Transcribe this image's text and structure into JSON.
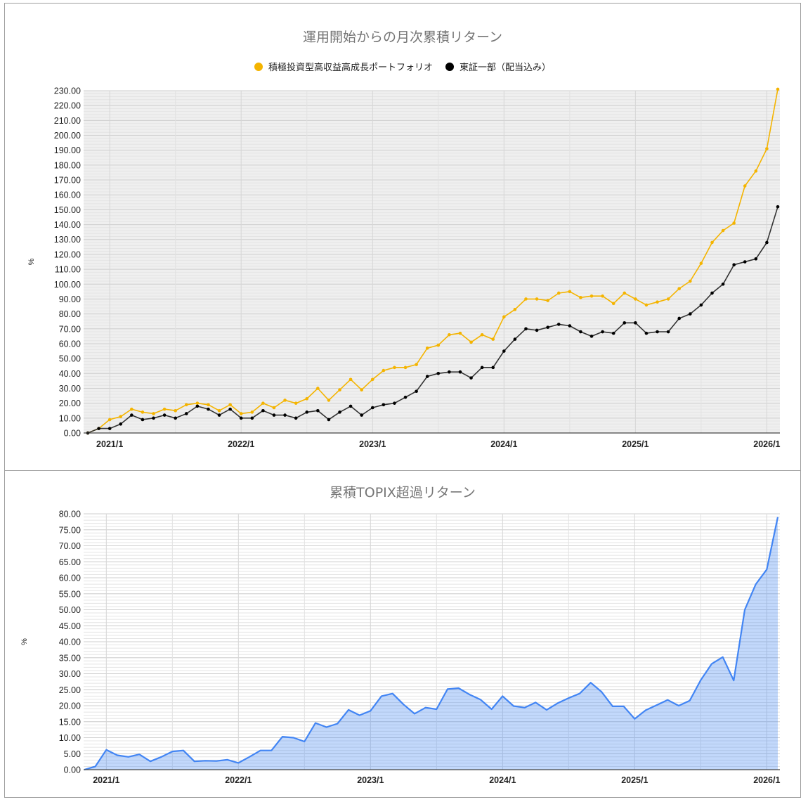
{
  "chart_data": [
    {
      "type": "line",
      "title": "運用開始からの月次累積リターン",
      "xlabel": "",
      "ylabel": "%",
      "ylim": [
        0,
        230
      ],
      "y_ticks": [
        "0.00",
        "10.00",
        "20.00",
        "30.00",
        "40.00",
        "50.00",
        "60.00",
        "70.00",
        "80.00",
        "90.00",
        "100.00",
        "110.00",
        "120.00",
        "130.00",
        "140.00",
        "150.00",
        "160.00",
        "170.00",
        "180.00",
        "190.00",
        "200.00",
        "210.00",
        "220.00",
        "230.00"
      ],
      "x_tick_labels": [
        "2021/1",
        "2022/1",
        "2023/1",
        "2024/1",
        "2025/1",
        "2026/1"
      ],
      "x_start": "2020/11",
      "x_end": "2026/2",
      "legend_position": "top",
      "grid": true,
      "series": [
        {
          "name": "積極投資型高収益高成長ポートフォリオ",
          "color": "#f4b400",
          "values": [
            0,
            3,
            9,
            11,
            16,
            14,
            13,
            16,
            15,
            19,
            20,
            19,
            15,
            19,
            13,
            14,
            20,
            17,
            22,
            20,
            23,
            30,
            22,
            29,
            36,
            29,
            36,
            42,
            44,
            44,
            46,
            57,
            59,
            66,
            67,
            61,
            66,
            63,
            78,
            83,
            90,
            90,
            89,
            94,
            95,
            91,
            92,
            92,
            87,
            94,
            90,
            86,
            88,
            90,
            97,
            102,
            114,
            128,
            136,
            141,
            166,
            176,
            191,
            231
          ]
        },
        {
          "name": "東証一部（配当込み）",
          "color": "#000000",
          "values": [
            0,
            3,
            3,
            6,
            12,
            9,
            10,
            12,
            10,
            13,
            18,
            16,
            12,
            16,
            10,
            10,
            15,
            12,
            12,
            10,
            14,
            15,
            9,
            14,
            18,
            12,
            17,
            19,
            20,
            24,
            28,
            38,
            40,
            41,
            41,
            37,
            44,
            44,
            55,
            63,
            70,
            69,
            71,
            73,
            72,
            68,
            65,
            68,
            67,
            74,
            74,
            67,
            68,
            68,
            77,
            80,
            86,
            94,
            100,
            113,
            115,
            117,
            128,
            152
          ]
        }
      ]
    },
    {
      "type": "area",
      "title": "累積TOPIX超過リターン",
      "xlabel": "",
      "ylabel": "%",
      "ylim": [
        0,
        80
      ],
      "y_ticks": [
        "0.00",
        "5.00",
        "10.00",
        "15.00",
        "20.00",
        "25.00",
        "30.00",
        "35.00",
        "40.00",
        "45.00",
        "50.00",
        "55.00",
        "60.00",
        "65.00",
        "70.00",
        "75.00",
        "80.00"
      ],
      "x_tick_labels": [
        "2021/1",
        "2022/1",
        "2023/1",
        "2024/1",
        "2025/1",
        "2026/1"
      ],
      "x_start": "2020/11",
      "x_end": "2026/2",
      "legend_position": "none",
      "grid": true,
      "series": [
        {
          "name": "累積TOPIX超過リターン",
          "color": "#4285f4",
          "values": [
            0,
            1,
            6.2,
            4.5,
            4.0,
            4.8,
            2.6,
            4.0,
            5.7,
            6.0,
            2.6,
            2.8,
            2.7,
            3.1,
            2.1,
            4.0,
            6.0,
            6.0,
            10.3,
            10.0,
            8.8,
            14.6,
            13.3,
            14.4,
            18.7,
            17.0,
            18.4,
            23.0,
            23.8,
            20.4,
            17.5,
            19.4,
            18.9,
            25.2,
            25.5,
            23.5,
            21.9,
            18.9,
            23.0,
            19.9,
            19.4,
            21.0,
            18.7,
            20.8,
            22.4,
            23.8,
            27.2,
            24.3,
            19.8,
            19.8,
            15.9,
            18.6,
            20.2,
            21.8,
            20.0,
            21.6,
            28.0,
            33.1,
            35.2,
            27.9,
            50.0,
            58.0,
            62.6,
            79.0
          ]
        }
      ]
    }
  ],
  "chart1": {
    "title": "運用開始からの月次累積リターン",
    "legend": [
      {
        "label": "積極投資型高収益高成長ポートフォリオ",
        "color": "#f4b400"
      },
      {
        "label": "東証一部（配当込み）",
        "color": "#000000"
      }
    ],
    "ylabel": "%"
  },
  "chart2": {
    "title": "累積TOPIX超過リターン",
    "ylabel": "%"
  }
}
